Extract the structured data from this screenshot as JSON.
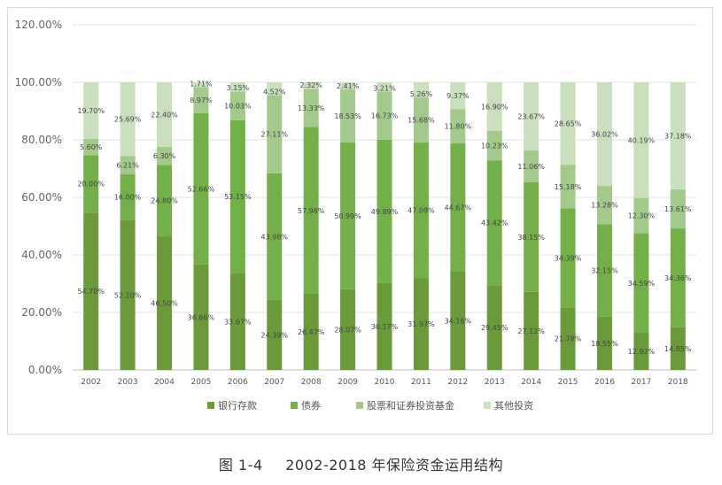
{
  "chart_data": {
    "type": "bar",
    "stacked": true,
    "normalized": true,
    "categories": [
      "2002",
      "2003",
      "2004",
      "2005",
      "2006",
      "2007",
      "2008",
      "2009",
      "2010",
      "2011",
      "2012",
      "2013",
      "2014",
      "2015",
      "2016",
      "2017",
      "2018"
    ],
    "series": [
      {
        "name": "银行存款",
        "color": "#6a9a3a",
        "values": [
          54.7,
          52.1,
          46.5,
          36.66,
          33.67,
          24.39,
          26.47,
          28.07,
          30.17,
          31.97,
          34.16,
          29.45,
          27.12,
          21.78,
          18.55,
          12.92,
          14.85
        ]
      },
      {
        "name": "债券",
        "color": "#74b04a",
        "values": [
          20.0,
          16.0,
          24.8,
          52.66,
          53.15,
          43.98,
          57.98,
          50.99,
          49.89,
          47.09,
          44.67,
          43.42,
          38.15,
          34.39,
          32.15,
          34.59,
          34.36
        ]
      },
      {
        "name": "股票和证券投资基金",
        "color": "#a3c98d",
        "values": [
          5.6,
          6.21,
          6.3,
          8.97,
          10.03,
          27.11,
          13.33,
          18.53,
          16.73,
          15.68,
          11.8,
          10.23,
          11.06,
          15.18,
          13.28,
          12.3,
          13.61
        ]
      },
      {
        "name": "其他投资",
        "color": "#c9dfbd",
        "values": [
          19.7,
          25.69,
          22.4,
          1.71,
          3.15,
          4.52,
          2.32,
          2.41,
          3.21,
          5.26,
          9.37,
          16.9,
          23.67,
          28.65,
          36.02,
          40.19,
          37.18
        ]
      }
    ],
    "label_values": [
      [
        "54.70%",
        "52.10%",
        "46.50%",
        "36.66%",
        "33.67%",
        "24.39%",
        "26.47%",
        "28.07%",
        "30.17%",
        "31.97%",
        "34.16%",
        "29.45%",
        "27.12%",
        "21.78%",
        "18.55%",
        "12.92%",
        "14.85%"
      ],
      [
        "20.00%",
        "16.00%",
        "24.80%",
        "52.66%",
        "53.15%",
        "43.98%",
        "57.98%",
        "50.99%",
        "49.89%",
        "47.09%",
        "44.67%",
        "43.42%",
        "38.15%",
        "34.39%",
        "32.15%",
        "34.59%",
        "34.36%"
      ],
      [
        "5.60%",
        "6.21%",
        "6.30%",
        "8.97%",
        "10.03%",
        "27.11%",
        "13.33%",
        "18.53%",
        "16.73%",
        "15.68%",
        "11.80%",
        "10.23%",
        "11.06%",
        "15.18%",
        "13.28%",
        "12.30%",
        "13.61%"
      ],
      [
        "19.70%",
        "25.69%",
        "22.40%",
        "1.71%",
        "3.15%",
        "4.52%",
        "2.32%",
        "2.41%",
        "3.21%",
        "5.26%",
        "9.37%",
        "16.90%",
        "23.67%",
        "28.65%",
        "36.02%",
        "40.19%",
        "37.18%"
      ]
    ],
    "ylim": [
      0,
      120
    ],
    "yticks": [
      "0.00%",
      "20.00%",
      "40.00%",
      "60.00%",
      "80.00%",
      "100.00%",
      "120.00%"
    ],
    "grid": true,
    "legend_position": "bottom"
  },
  "caption": {
    "prefix": "图 1-4",
    "text": "2002-2018 年保险资金运用结构"
  }
}
